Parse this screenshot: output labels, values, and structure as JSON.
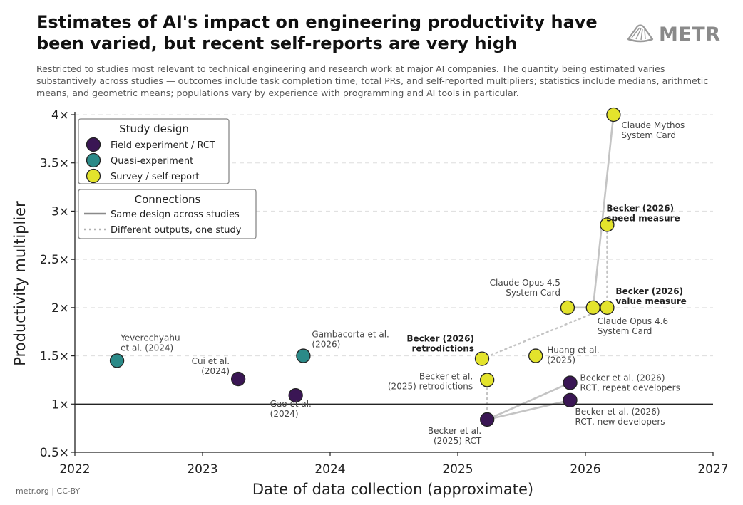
{
  "title": "Estimates of AI's impact on engineering productivity have been varied, but recent self-reports are very high",
  "subtitle": "Restricted to studies most relevant to technical engineering and research work at major AI companies. The quantity being estimated varies substantively across studies — outcomes include task completion time, total PRs, and self-reported multipliers; statistics include medians, arithmetic means, and geometric means; populations vary by experience with programming and AI tools in particular.",
  "brand": "METR",
  "footer": "metr.org  |  CC-BY",
  "colors": {
    "field_experiment": "#3a1654",
    "quasi_experiment": "#2b8a88",
    "survey": "#e3e32c",
    "connection": "#c4c4c4"
  },
  "chart_data": {
    "type": "scatter",
    "xlabel": "Date of data collection (approximate)",
    "ylabel": "Productivity multiplier",
    "xlim": [
      2022,
      2027
    ],
    "ylim": [
      0.5,
      4
    ],
    "x_ticks": [
      {
        "value": 2022,
        "label": "2022"
      },
      {
        "value": 2023,
        "label": "2023"
      },
      {
        "value": 2024,
        "label": "2024"
      },
      {
        "value": 2025,
        "label": "2025"
      },
      {
        "value": 2026,
        "label": "2026"
      },
      {
        "value": 2027,
        "label": "2027"
      }
    ],
    "y_ticks": [
      {
        "value": 0.5,
        "label": "0.5×"
      },
      {
        "value": 1,
        "label": "1×"
      },
      {
        "value": 1.5,
        "label": "1.5×"
      },
      {
        "value": 2,
        "label": "2×"
      },
      {
        "value": 2.5,
        "label": "2.5×"
      },
      {
        "value": 3,
        "label": "3×"
      },
      {
        "value": 3.5,
        "label": "3.5×"
      },
      {
        "value": 4,
        "label": "4×"
      }
    ],
    "reference_line": 1,
    "grid": "horizontal dashed",
    "legends": [
      {
        "title": "Study design",
        "placement": "top-left",
        "entries": [
          {
            "label": "Field experiment / RCT",
            "design": "field_experiment"
          },
          {
            "label": "Quasi-experiment",
            "design": "quasi_experiment"
          },
          {
            "label": "Survey / self-report",
            "design": "survey"
          }
        ]
      },
      {
        "title": "Connections",
        "placement": "upper-left",
        "entries": [
          {
            "label": "Same design across studies",
            "style": "solid"
          },
          {
            "label": "Different outputs, one study",
            "style": "dotted"
          }
        ]
      }
    ],
    "points": [
      {
        "id": "yeverechyahu",
        "x": 2022.33,
        "y": 1.45,
        "design": "quasi_experiment",
        "label": [
          "Yeverechyahu",
          "et al. (2024)"
        ],
        "bold": false
      },
      {
        "id": "cui",
        "x": 2023.28,
        "y": 1.26,
        "design": "field_experiment",
        "label": [
          "Cui et al.",
          "(2024)"
        ],
        "bold": false
      },
      {
        "id": "gao",
        "x": 2023.73,
        "y": 1.09,
        "design": "field_experiment",
        "label": [
          "Gao et al.",
          "(2024)"
        ],
        "bold": false
      },
      {
        "id": "gambacorta",
        "x": 2023.79,
        "y": 1.5,
        "design": "quasi_experiment",
        "label": [
          "Gambacorta et al.",
          "(2026)"
        ],
        "bold": false
      },
      {
        "id": "becker2026_retro",
        "x": 2025.19,
        "y": 1.47,
        "design": "survey",
        "label": [
          "Becker (2026)",
          "retrodictions"
        ],
        "bold": true
      },
      {
        "id": "becker2025_retro",
        "x": 2025.23,
        "y": 1.25,
        "design": "survey",
        "label": [
          "Becker et al.",
          "(2025) retrodictions"
        ],
        "bold": false
      },
      {
        "id": "becker2025_rct",
        "x": 2025.23,
        "y": 0.84,
        "design": "field_experiment",
        "label": [
          "Becker et al.",
          "(2025) RCT"
        ],
        "bold": false
      },
      {
        "id": "huang",
        "x": 2025.61,
        "y": 1.5,
        "design": "survey",
        "label": [
          "Huang et al.",
          "(2025)"
        ],
        "bold": false
      },
      {
        "id": "opus45",
        "x": 2025.86,
        "y": 2.0,
        "design": "survey",
        "label": [
          "Claude Opus 4.5",
          "System Card"
        ],
        "bold": false
      },
      {
        "id": "becker2026_repeat",
        "x": 2025.88,
        "y": 1.22,
        "design": "field_experiment",
        "label": [
          "Becker et al. (2026)",
          "RCT, repeat developers"
        ],
        "bold": false
      },
      {
        "id": "becker2026_new",
        "x": 2025.88,
        "y": 1.04,
        "design": "field_experiment",
        "label": [
          "Becker et al. (2026)",
          "RCT, new developers"
        ],
        "bold": false
      },
      {
        "id": "opus46",
        "x": 2026.06,
        "y": 2.0,
        "design": "survey",
        "label": [
          "Claude Opus 4.6",
          "System Card"
        ],
        "bold": false
      },
      {
        "id": "becker2026_value",
        "x": 2026.17,
        "y": 2.0,
        "design": "survey",
        "label": [
          "Becker (2026)",
          "value measure"
        ],
        "bold": true
      },
      {
        "id": "becker2026_speed",
        "x": 2026.17,
        "y": 2.86,
        "design": "survey",
        "label": [
          "Becker (2026)",
          "speed measure"
        ],
        "bold": true
      },
      {
        "id": "mythos",
        "x": 2026.22,
        "y": 4.0,
        "design": "survey",
        "label": [
          "Claude Mythos",
          "System Card"
        ],
        "bold": false
      }
    ],
    "connections": [
      {
        "from": "becker2025_rct",
        "to": "becker2026_repeat",
        "style": "solid"
      },
      {
        "from": "becker2025_rct",
        "to": "becker2026_new",
        "style": "solid"
      },
      {
        "from": "opus45",
        "to": "opus46",
        "style": "solid"
      },
      {
        "from": "opus46",
        "to": "mythos",
        "style": "solid"
      },
      {
        "from": "becker2025_rct",
        "to": "becker2025_retro",
        "style": "dotted"
      },
      {
        "from": "becker2026_retro",
        "to": "becker2026_value",
        "style": "dotted"
      },
      {
        "from": "becker2026_value",
        "to": "becker2026_speed",
        "style": "dotted"
      }
    ]
  }
}
